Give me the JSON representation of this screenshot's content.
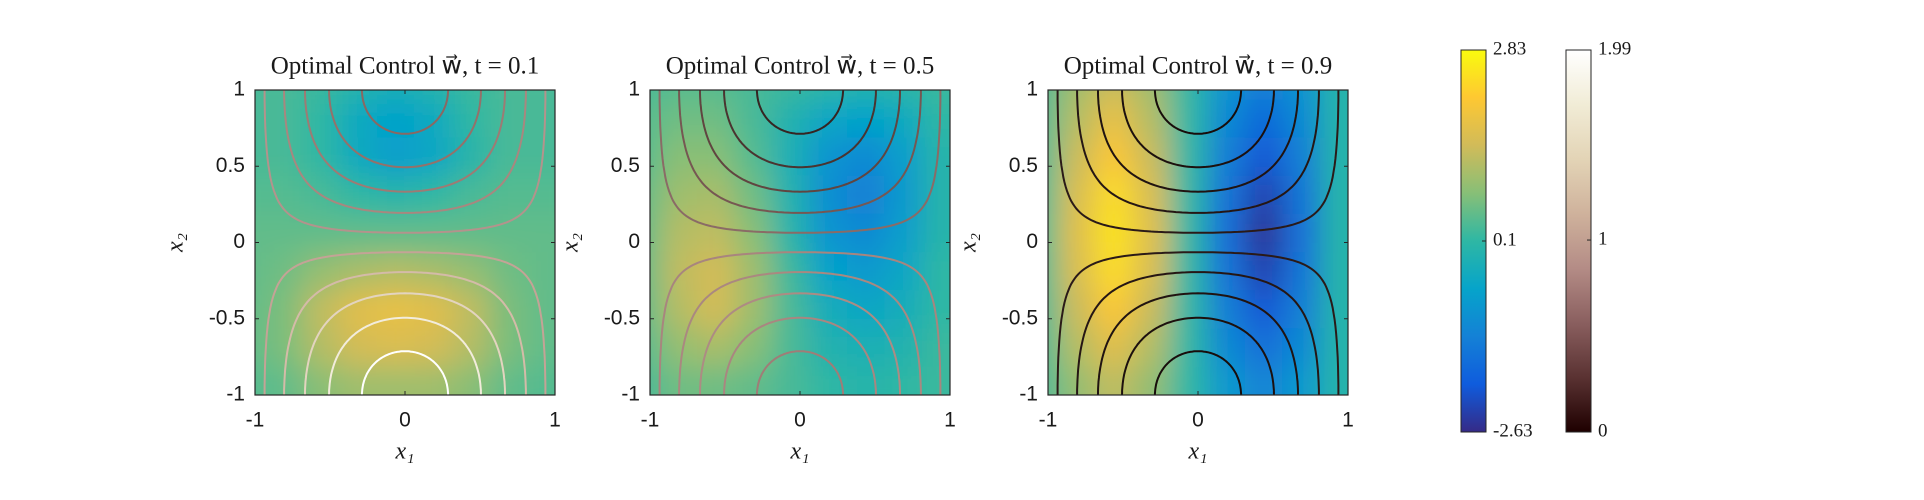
{
  "chart_data": [
    {
      "type": "contour",
      "title": "Optimal Control w⃗, t = 0.1",
      "x_label": "x₁",
      "y_label": "x₂",
      "xlim": [
        -1,
        1
      ],
      "ylim": [
        -1,
        1
      ],
      "xticks": [
        -1,
        0,
        1
      ],
      "yticks": [
        -1,
        -0.5,
        0,
        0.5,
        1
      ],
      "x": [
        -1,
        -0.75,
        -0.5,
        -0.25,
        0,
        0.25,
        0.5,
        0.75,
        1
      ],
      "y": [
        1,
        0.75,
        0.5,
        0.25,
        0,
        -0.25,
        -0.5,
        -0.75,
        -1
      ],
      "z": [
        [
          0.3,
          0.3,
          0.2,
          0,
          -0.2,
          0,
          0.2,
          0.3,
          0.3
        ],
        [
          0.3,
          0.3,
          0.1,
          -0.4,
          -0.6,
          -0.4,
          0.1,
          0.3,
          0.3
        ],
        [
          0.3,
          0.3,
          0.1,
          -0.4,
          -0.7,
          -0.5,
          0,
          0.3,
          0.3
        ],
        [
          0.4,
          0.4,
          0.3,
          0.1,
          0,
          0.1,
          0.3,
          0.4,
          0.4
        ],
        [
          0.5,
          0.5,
          0.5,
          0.5,
          0.5,
          0.5,
          0.5,
          0.5,
          0.5
        ],
        [
          0.5,
          0.6,
          0.9,
          1.1,
          1.2,
          1.1,
          0.9,
          0.6,
          0.5
        ],
        [
          0.5,
          0.7,
          1.3,
          1.7,
          1.8,
          1.7,
          1.3,
          0.7,
          0.5
        ],
        [
          0.5,
          0.7,
          1.2,
          1.5,
          1.6,
          1.5,
          1.2,
          0.7,
          0.5
        ],
        [
          0.4,
          0.5,
          0.8,
          1,
          1,
          1,
          0.8,
          0.5,
          0.4
        ]
      ],
      "contour_levels": [
        0.1,
        0.3,
        0.5,
        0.7,
        0.9
      ],
      "contour_colors_top": [
        "#b3938c",
        "#a8877f",
        "#9d7b74",
        "#94716a",
        "#8a6862"
      ],
      "contour_colors_bottom": [
        "#c4a396",
        "#d4bba8",
        "#e3d4bf",
        "#f2ecdc",
        "#ffffff"
      ]
    },
    {
      "type": "contour",
      "title": "Optimal Control w⃗, t = 0.5",
      "x_label": "x₁",
      "y_label": "x₂",
      "xlim": [
        -1,
        1
      ],
      "ylim": [
        -1,
        1
      ],
      "xticks": [
        -1,
        0,
        1
      ],
      "yticks": [
        -1,
        -0.5,
        0,
        0.5,
        1
      ],
      "x": [
        -1,
        -0.75,
        -0.5,
        -0.25,
        0,
        0.25,
        0.5,
        0.75,
        1
      ],
      "y": [
        1,
        0.75,
        0.5,
        0.25,
        0,
        -0.25,
        -0.5,
        -0.75,
        -1
      ],
      "z": [
        [
          0.3,
          0.4,
          0.4,
          0.3,
          0.2,
          0.1,
          0,
          0.1,
          0.2
        ],
        [
          0.4,
          0.6,
          0.6,
          0.3,
          -0.1,
          -0.5,
          -0.6,
          -0.4,
          0.1
        ],
        [
          0.4,
          0.8,
          0.8,
          0.4,
          -0.2,
          -0.9,
          -1.1,
          -0.7,
          0
        ],
        [
          0.5,
          1,
          1.1,
          0.6,
          -0.1,
          -1,
          -1.3,
          -0.8,
          0
        ],
        [
          0.5,
          1.2,
          1.3,
          0.8,
          0,
          -0.9,
          -1.1,
          -0.7,
          0
        ],
        [
          0.5,
          1.3,
          1.5,
          1,
          0.2,
          -0.6,
          -0.8,
          -0.5,
          0.1
        ],
        [
          0.5,
          1.2,
          1.5,
          1,
          0.3,
          -0.3,
          -0.5,
          -0.3,
          0.1
        ],
        [
          0.4,
          0.9,
          1.1,
          0.8,
          0.3,
          -0.1,
          -0.2,
          -0.1,
          0.2
        ],
        [
          0.3,
          0.6,
          0.6,
          0.5,
          0.3,
          0.1,
          0,
          0.1,
          0.2
        ]
      ],
      "contour_levels": [
        0.1,
        0.3,
        0.5,
        0.7,
        0.9
      ],
      "contour_colors_top": [
        "#8a6b66",
        "#765752",
        "#604540",
        "#4a3430",
        "#362522"
      ],
      "contour_colors_bottom": [
        "#a8857e",
        "#aa8880",
        "#ad8b83",
        "#a98680",
        "#9f7d77"
      ]
    },
    {
      "type": "contour",
      "title": "Optimal Control w⃗, t = 0.9",
      "x_label": "x₁",
      "y_label": "x₂",
      "xlim": [
        -1,
        1
      ],
      "ylim": [
        -1,
        1
      ],
      "xticks": [
        -1,
        0,
        1
      ],
      "yticks": [
        -1,
        -0.5,
        0,
        0.5,
        1
      ],
      "x": [
        -1,
        -0.75,
        -0.5,
        -0.25,
        0,
        0.25,
        0.5,
        0.75,
        1
      ],
      "y": [
        1,
        0.75,
        0.5,
        0.25,
        0,
        -0.25,
        -0.5,
        -0.75,
        -1
      ],
      "z": [
        [
          0.3,
          1,
          1.4,
          1,
          0.1,
          -0.9,
          -1.3,
          -0.9,
          0
        ],
        [
          0.3,
          1.2,
          1.8,
          1.2,
          0.1,
          -1.1,
          -1.7,
          -1.1,
          0
        ],
        [
          0.3,
          1.4,
          2.1,
          1.4,
          0.1,
          -1.3,
          -2,
          -1.3,
          0
        ],
        [
          0.3,
          1.6,
          2.4,
          1.6,
          0.1,
          -1.5,
          -2.3,
          -1.5,
          0
        ],
        [
          0.3,
          1.7,
          2.5,
          1.7,
          0.1,
          -1.6,
          -2.5,
          -1.6,
          0
        ],
        [
          0.3,
          1.6,
          2.4,
          1.6,
          0.1,
          -1.5,
          -2.3,
          -1.5,
          0
        ],
        [
          0.3,
          1.4,
          2.1,
          1.4,
          0.1,
          -1.3,
          -2,
          -1.3,
          0
        ],
        [
          0.3,
          1.2,
          1.7,
          1.2,
          0.1,
          -1.1,
          -1.6,
          -1.1,
          0
        ],
        [
          0.3,
          0.9,
          1.3,
          0.9,
          0.1,
          -0.8,
          -1.2,
          -0.8,
          0
        ]
      ],
      "contour_levels": [
        0.1,
        0.3,
        0.5,
        0.7,
        0.9
      ],
      "contour_colors_top": [
        "#2a1a18",
        "#251614",
        "#201311",
        "#1c100e",
        "#180d0b"
      ],
      "contour_colors_bottom": [
        "#2a1a18",
        "#251614",
        "#201311",
        "#1c100e",
        "#180d0b"
      ]
    }
  ],
  "colorbars": [
    {
      "clim": [
        -2.63,
        2.83
      ],
      "ticks": [
        -2.63,
        0.1,
        2.83
      ],
      "colormap": [
        "#352a87",
        "#0f5cdd",
        "#1481d6",
        "#06a4ca",
        "#2eb7a4",
        "#87bf77",
        "#d1bb59",
        "#fec832",
        "#f9fb0e"
      ]
    },
    {
      "clim": [
        0,
        1.99
      ],
      "ticks": [
        0,
        1,
        1.99
      ],
      "colormap": [
        "#1e0000",
        "#5a3232",
        "#8a5f5f",
        "#b48c86",
        "#cfb29c",
        "#e3d4b6",
        "#f1ecd6",
        "#ffffff"
      ]
    }
  ]
}
